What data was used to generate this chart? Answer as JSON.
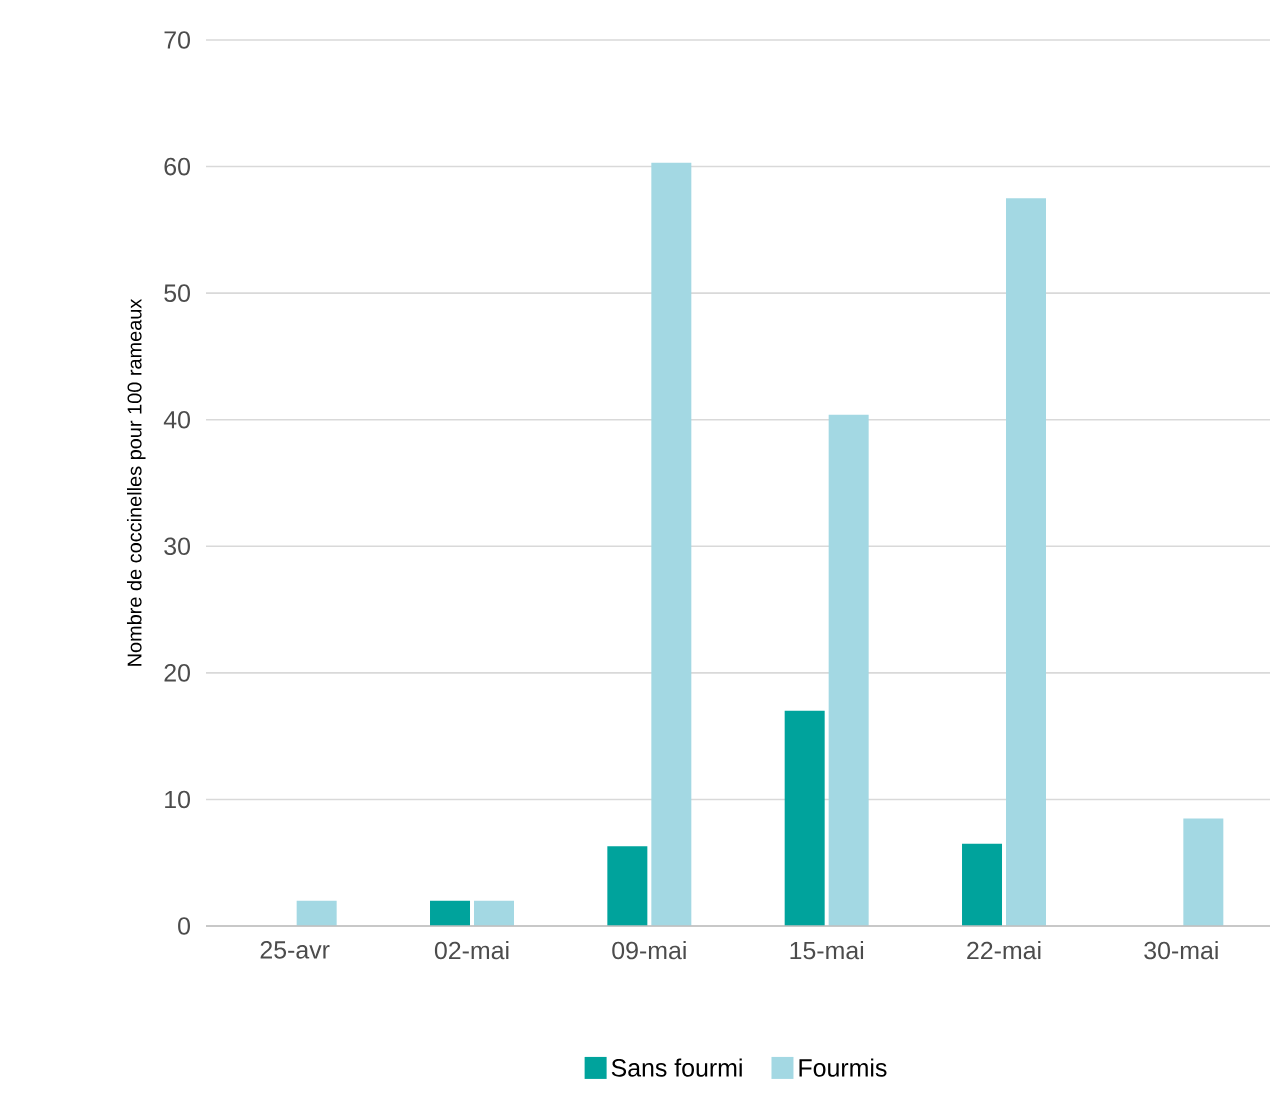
{
  "chart_data": {
    "type": "bar",
    "ylabel": "Nombre de coccinelles pour 100 rameaux",
    "categories": [
      "25-avr",
      "02-mai",
      "09-mai",
      "15-mai",
      "22-mai",
      "30-mai"
    ],
    "series": [
      {
        "name": "Sans fourmi",
        "color": "#00a39c",
        "values": [
          0,
          2,
          6.3,
          17,
          6.5,
          0
        ]
      },
      {
        "name": "Fourmis",
        "color": "#a3d8e3",
        "values": [
          2,
          2,
          60.3,
          40.4,
          57.5,
          8.5
        ]
      }
    ],
    "ylim": [
      0,
      70
    ],
    "yticks": [
      0,
      10,
      20,
      30,
      40,
      50,
      60,
      70
    ],
    "grid": "y",
    "legend": "bottom"
  }
}
